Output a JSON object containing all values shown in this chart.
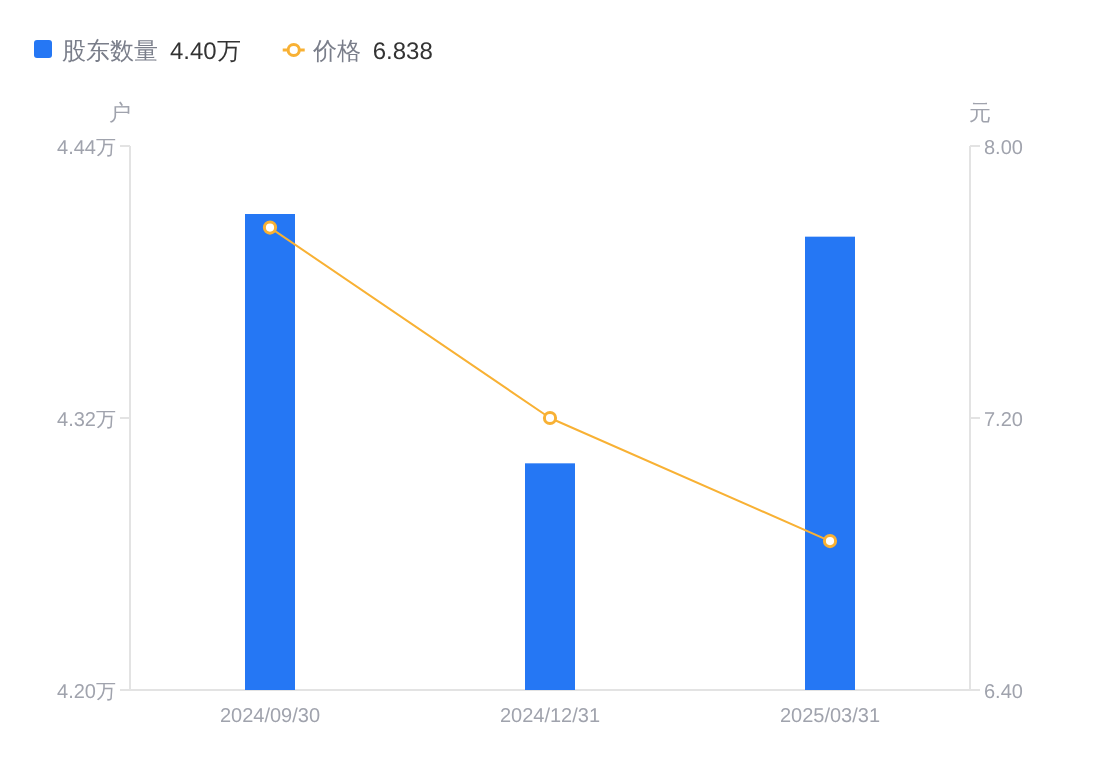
{
  "chart_data": {
    "type": "bar",
    "categories": [
      "2024/09/30",
      "2024/12/31",
      "2025/03/31"
    ],
    "series": [
      {
        "name": "股东数量",
        "color": "#2577f4",
        "values": [
          4.41,
          4.3,
          4.4
        ]
      },
      {
        "name": "价格",
        "type": "line",
        "axis": "y2",
        "color": "#f8b134",
        "values": [
          7.76,
          7.2,
          6.838
        ]
      }
    ],
    "ylabel": "户",
    "y2label": "元",
    "ylim": [
      4.2,
      4.44
    ],
    "yticks": [
      {
        "value": 4.2,
        "label": "4.20万"
      },
      {
        "value": 4.32,
        "label": "4.32万"
      },
      {
        "value": 4.44,
        "label": "4.44万"
      }
    ],
    "y2lim": [
      6.4,
      8.0
    ],
    "y2ticks": [
      {
        "value": 6.4,
        "label": "6.40"
      },
      {
        "value": 7.2,
        "label": "7.20"
      },
      {
        "value": 8.0,
        "label": "8.00"
      }
    ],
    "annotations": [
      "4.40万",
      "6.838"
    ],
    "legend": "top left",
    "marker": "circle",
    "grid": false
  }
}
